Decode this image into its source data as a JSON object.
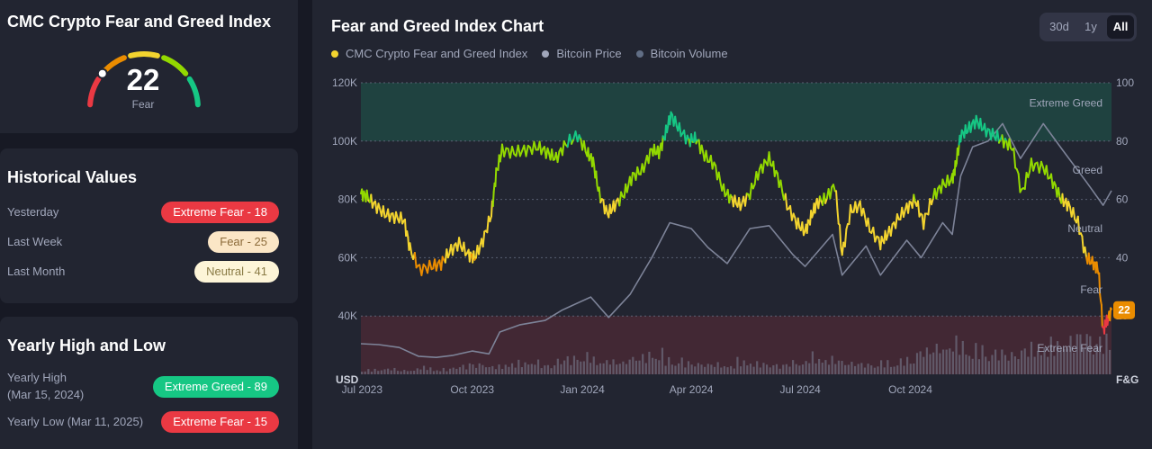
{
  "gauge_card": {
    "title": "CMC Crypto Fear and Greed Index",
    "value": "22",
    "label": "Fear",
    "level": 22
  },
  "historical": {
    "title": "Historical Values",
    "rows": [
      {
        "label": "Yesterday",
        "value": "Extreme Fear - 18",
        "bg": "#ea3943",
        "fg": "#ffffff"
      },
      {
        "label": "Last Week",
        "value": "Fear - 25",
        "bg": "#fbe6c6",
        "fg": "#8c6b3a"
      },
      {
        "label": "Last Month",
        "value": "Neutral - 41",
        "bg": "#fdf5d8",
        "fg": "#8a7b45"
      }
    ]
  },
  "yearly": {
    "title": "Yearly High and Low",
    "high_label": "Yearly High",
    "high_date": "(Mar 15, 2024)",
    "high_value": "Extreme Greed - 89",
    "high_bg": "#16c784",
    "low_label": "Yearly Low (Mar 11, 2025)",
    "low_value": "Extreme Fear - 15",
    "low_bg": "#ea3943"
  },
  "chart_panel": {
    "title": "Fear and Greed Index Chart",
    "tabs": [
      "30d",
      "1y",
      "All"
    ],
    "active_tab": "All"
  },
  "chart_data": {
    "type": "line",
    "legend": [
      "CMC Crypto Fear and Greed Index",
      "Bitcoin Price",
      "Bitcoin Volume"
    ],
    "legend_colors": [
      "#f3d42f",
      "#a1a7bb",
      "#616e85"
    ],
    "x_ticks": [
      "Jul 2023",
      "Oct 2023",
      "Jan 2024",
      "Apr 2024",
      "Jul 2024",
      "Oct 2024"
    ],
    "x_range": [
      "2023-06-30",
      "2025-03-18"
    ],
    "left_axis": {
      "label": "USD",
      "ticks": [
        "40K",
        "60K",
        "80K",
        "100K",
        "120K"
      ],
      "range": [
        20000,
        120000
      ]
    },
    "right_axis": {
      "label": "F&G",
      "ticks": [
        "20",
        "40",
        "60",
        "80",
        "100"
      ],
      "range": [
        0,
        100
      ]
    },
    "zones": [
      {
        "name": "Extreme Greed",
        "range": [
          80,
          100
        ],
        "color": "#16c784"
      },
      {
        "name": "Greed",
        "at": 70
      },
      {
        "name": "Neutral",
        "at": 50
      },
      {
        "name": "Fear",
        "at": 29
      },
      {
        "name": "Extreme Fear",
        "range": [
          0,
          20
        ],
        "color": "#ea3943"
      }
    ],
    "fng_series": {
      "name": "CMC Crypto Fear and Greed Index",
      "x": [
        "2023-06-30",
        "2023-07-05",
        "2023-07-12",
        "2023-07-20",
        "2023-07-28",
        "2023-08-05",
        "2023-08-10",
        "2023-08-18",
        "2023-08-28",
        "2023-09-05",
        "2023-09-12",
        "2023-09-20",
        "2023-09-28",
        "2023-10-03",
        "2023-10-10",
        "2023-10-17",
        "2023-10-21",
        "2023-10-26",
        "2023-11-05",
        "2023-11-15",
        "2023-11-25",
        "2023-12-03",
        "2023-12-10",
        "2023-12-18",
        "2023-12-28",
        "2024-01-05",
        "2024-01-10",
        "2024-01-15",
        "2024-01-22",
        "2024-01-28",
        "2024-02-05",
        "2024-02-12",
        "2024-02-20",
        "2024-02-28",
        "2024-03-05",
        "2024-03-10",
        "2024-03-15",
        "2024-03-22",
        "2024-03-30",
        "2024-04-05",
        "2024-04-12",
        "2024-04-20",
        "2024-04-28",
        "2024-05-05",
        "2024-05-12",
        "2024-05-20",
        "2024-05-28",
        "2024-06-05",
        "2024-06-12",
        "2024-06-20",
        "2024-06-28",
        "2024-07-05",
        "2024-07-10",
        "2024-07-15",
        "2024-07-22",
        "2024-07-30",
        "2024-08-05",
        "2024-08-12",
        "2024-08-20",
        "2024-08-28",
        "2024-09-06",
        "2024-09-12",
        "2024-09-20",
        "2024-09-28",
        "2024-10-05",
        "2024-10-12",
        "2024-10-20",
        "2024-10-28",
        "2024-11-05",
        "2024-11-08",
        "2024-11-12",
        "2024-11-18",
        "2024-11-25",
        "2024-12-02",
        "2024-12-10",
        "2024-12-18",
        "2024-12-25",
        "2025-01-02",
        "2025-01-10",
        "2025-01-20",
        "2025-01-28",
        "2025-02-04",
        "2025-02-10",
        "2025-02-18",
        "2025-02-25",
        "2025-03-03",
        "2025-03-07",
        "2025-03-11",
        "2025-03-14",
        "2025-03-18"
      ],
      "values": [
        62,
        61,
        58,
        55,
        54,
        53,
        43,
        36,
        37,
        38,
        42,
        45,
        41,
        40,
        46,
        55,
        69,
        77,
        76,
        77,
        78,
        76,
        74,
        79,
        82,
        76,
        73,
        62,
        55,
        58,
        62,
        68,
        70,
        77,
        76,
        82,
        89,
        84,
        80,
        81,
        75,
        72,
        63,
        60,
        58,
        62,
        70,
        74,
        68,
        58,
        52,
        49,
        54,
        59,
        60,
        65,
        41,
        56,
        58,
        50,
        45,
        48,
        53,
        57,
        60,
        52,
        61,
        65,
        67,
        72,
        82,
        84,
        87,
        84,
        82,
        80,
        78,
        62,
        72,
        71,
        66,
        60,
        58,
        52,
        40,
        38,
        36,
        15,
        18,
        22
      ]
    },
    "price_series": {
      "name": "Bitcoin Price",
      "x": [
        "2023-06-30",
        "2023-07-15",
        "2023-08-01",
        "2023-08-17",
        "2023-09-01",
        "2023-09-15",
        "2023-10-01",
        "2023-10-15",
        "2023-10-24",
        "2023-11-10",
        "2023-12-01",
        "2023-12-15",
        "2024-01-08",
        "2024-01-23",
        "2024-02-10",
        "2024-02-28",
        "2024-03-14",
        "2024-04-01",
        "2024-04-15",
        "2024-05-01",
        "2024-05-20",
        "2024-06-05",
        "2024-06-25",
        "2024-07-05",
        "2024-07-28",
        "2024-08-05",
        "2024-08-25",
        "2024-09-06",
        "2024-09-28",
        "2024-10-10",
        "2024-10-28",
        "2024-11-05",
        "2024-11-12",
        "2024-11-22",
        "2024-12-05",
        "2024-12-17",
        "2025-01-01",
        "2025-01-20",
        "2025-02-05",
        "2025-02-25",
        "2025-03-11",
        "2025-03-18"
      ],
      "values": [
        30500,
        30200,
        29200,
        26200,
        25800,
        26500,
        28000,
        27000,
        34500,
        37000,
        38500,
        42000,
        46500,
        39500,
        47500,
        60000,
        72000,
        70000,
        63500,
        58000,
        70000,
        71000,
        61000,
        57000,
        68000,
        54000,
        64000,
        54000,
        66000,
        60000,
        72000,
        68000,
        88000,
        98000,
        100000,
        106000,
        94000,
        106000,
        97000,
        86000,
        78000,
        83000
      ]
    },
    "volume_series": {
      "name": "Bitcoin Volume",
      "note_level": "bars grow over time, spikes up to ~25% of F&G scale",
      "relative_levels": [
        0.08,
        0.1,
        0.07,
        0.12,
        0.09,
        0.15,
        0.18,
        0.14,
        0.2,
        0.22,
        0.16,
        0.28,
        0.35,
        0.25,
        0.22,
        0.3,
        0.38,
        0.26,
        0.2,
        0.18,
        0.16,
        0.24,
        0.19,
        0.17,
        0.22,
        0.32,
        0.26,
        0.2,
        0.18,
        0.21,
        0.25,
        0.42,
        0.48,
        0.55,
        0.45,
        0.4,
        0.36,
        0.46,
        0.52,
        0.58,
        0.7,
        0.6
      ]
    },
    "current_value_label": "22"
  }
}
